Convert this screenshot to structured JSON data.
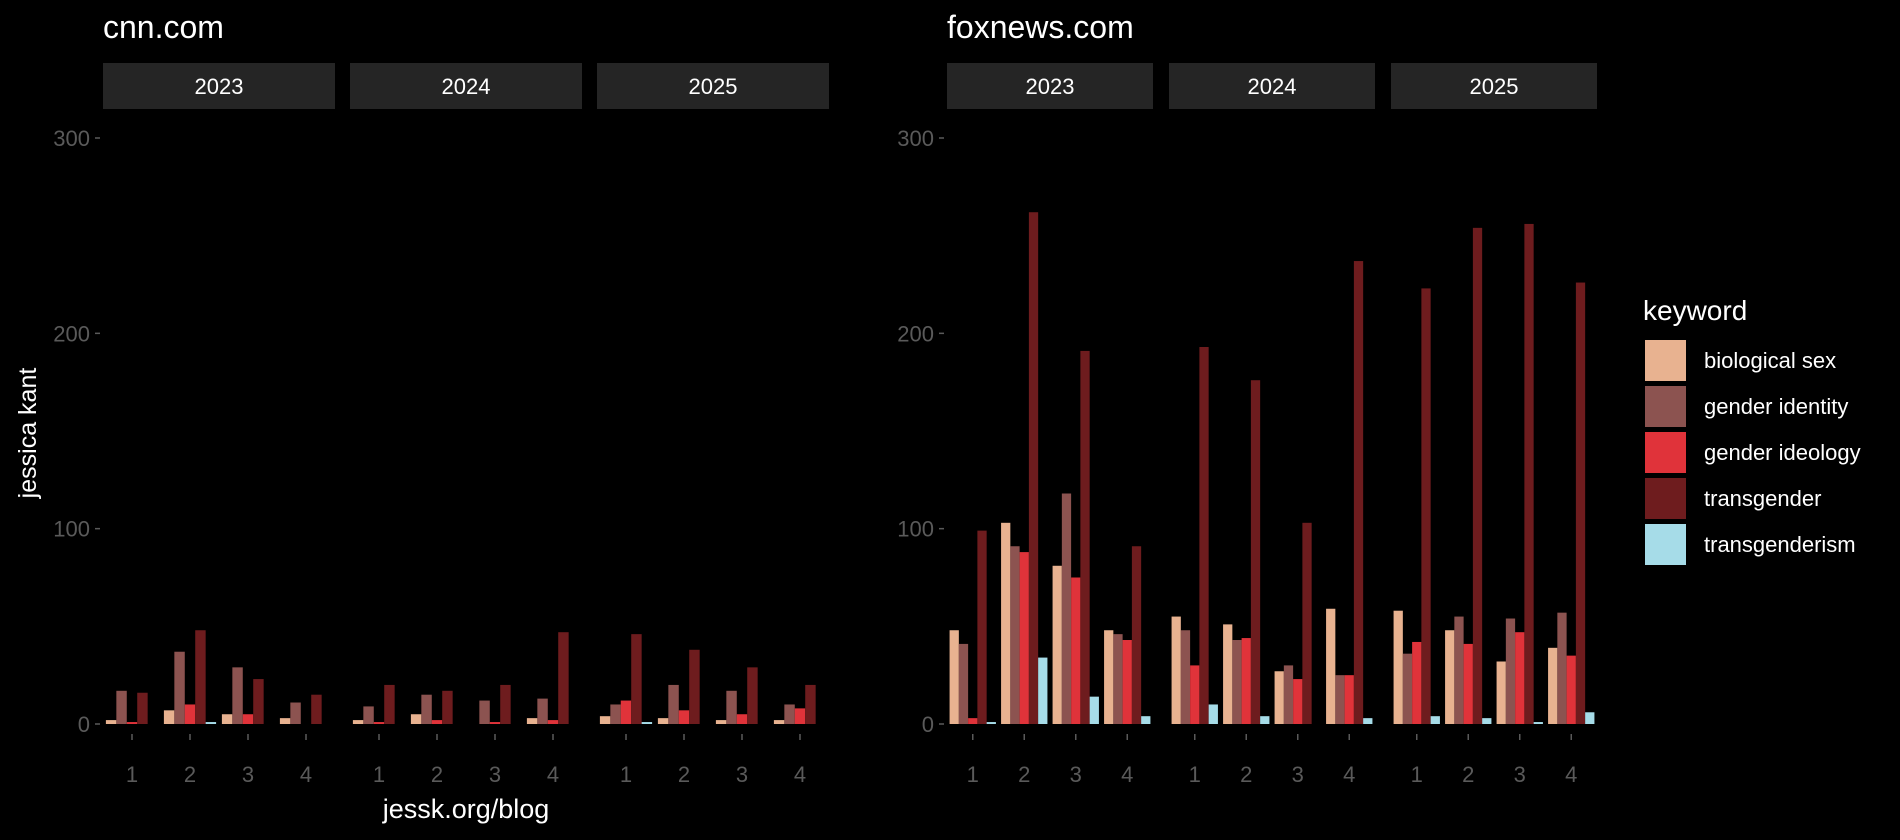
{
  "colors": {
    "background": "#000000",
    "strip": "#252525",
    "text": "#ffffff",
    "tick": "#5a5a5a"
  },
  "chart_data": {
    "type": "bar",
    "ylabel": "jessica kant",
    "xlabel": "jessk.org/blog",
    "ylim": [
      0,
      300
    ],
    "yticks": [
      0,
      100,
      200,
      300
    ],
    "grid": false,
    "legend": {
      "title": "keyword",
      "placement": "right"
    },
    "keywords": [
      {
        "name": "biological sex",
        "color": "#e8b290"
      },
      {
        "name": "gender identity",
        "color": "#8c5350"
      },
      {
        "name": "gender ideology",
        "color": "#e0333a"
      },
      {
        "name": "transgender",
        "color": "#6e1c1e"
      },
      {
        "name": "transgenderism",
        "color": "#a6dce8"
      }
    ],
    "quarters": [
      "1",
      "2",
      "3",
      "4"
    ],
    "panels": [
      {
        "site": "cnn.com",
        "years": [
          {
            "year": "2023",
            "values": [
              [
                2,
                17,
                1,
                16,
                0
              ],
              [
                7,
                37,
                10,
                48,
                1
              ],
              [
                5,
                29,
                5,
                23,
                0
              ],
              [
                3,
                11,
                0,
                15,
                0
              ]
            ]
          },
          {
            "year": "2024",
            "values": [
              [
                2,
                9,
                1,
                20,
                0
              ],
              [
                5,
                15,
                2,
                17,
                0
              ],
              [
                0,
                12,
                1,
                20,
                0
              ],
              [
                3,
                13,
                2,
                47,
                0
              ]
            ]
          },
          {
            "year": "2025",
            "values": [
              [
                4,
                10,
                12,
                46,
                1
              ],
              [
                3,
                20,
                7,
                38,
                0
              ],
              [
                2,
                17,
                5,
                29,
                0
              ],
              [
                2,
                10,
                8,
                20,
                0
              ]
            ]
          }
        ]
      },
      {
        "site": "foxnews.com",
        "years": [
          {
            "year": "2023",
            "values": [
              [
                48,
                41,
                3,
                99,
                1
              ],
              [
                103,
                91,
                88,
                262,
                34
              ],
              [
                81,
                118,
                75,
                191,
                14
              ],
              [
                48,
                46,
                43,
                91,
                4
              ]
            ]
          },
          {
            "year": "2024",
            "values": [
              [
                55,
                48,
                30,
                193,
                10
              ],
              [
                51,
                43,
                44,
                176,
                4
              ],
              [
                27,
                30,
                23,
                103,
                0
              ],
              [
                59,
                25,
                25,
                237,
                3
              ]
            ]
          },
          {
            "year": "2025",
            "values": [
              [
                58,
                36,
                42,
                223,
                4
              ],
              [
                48,
                55,
                41,
                254,
                3
              ],
              [
                32,
                54,
                47,
                256,
                1
              ],
              [
                39,
                57,
                35,
                226,
                6
              ]
            ]
          }
        ]
      }
    ]
  }
}
